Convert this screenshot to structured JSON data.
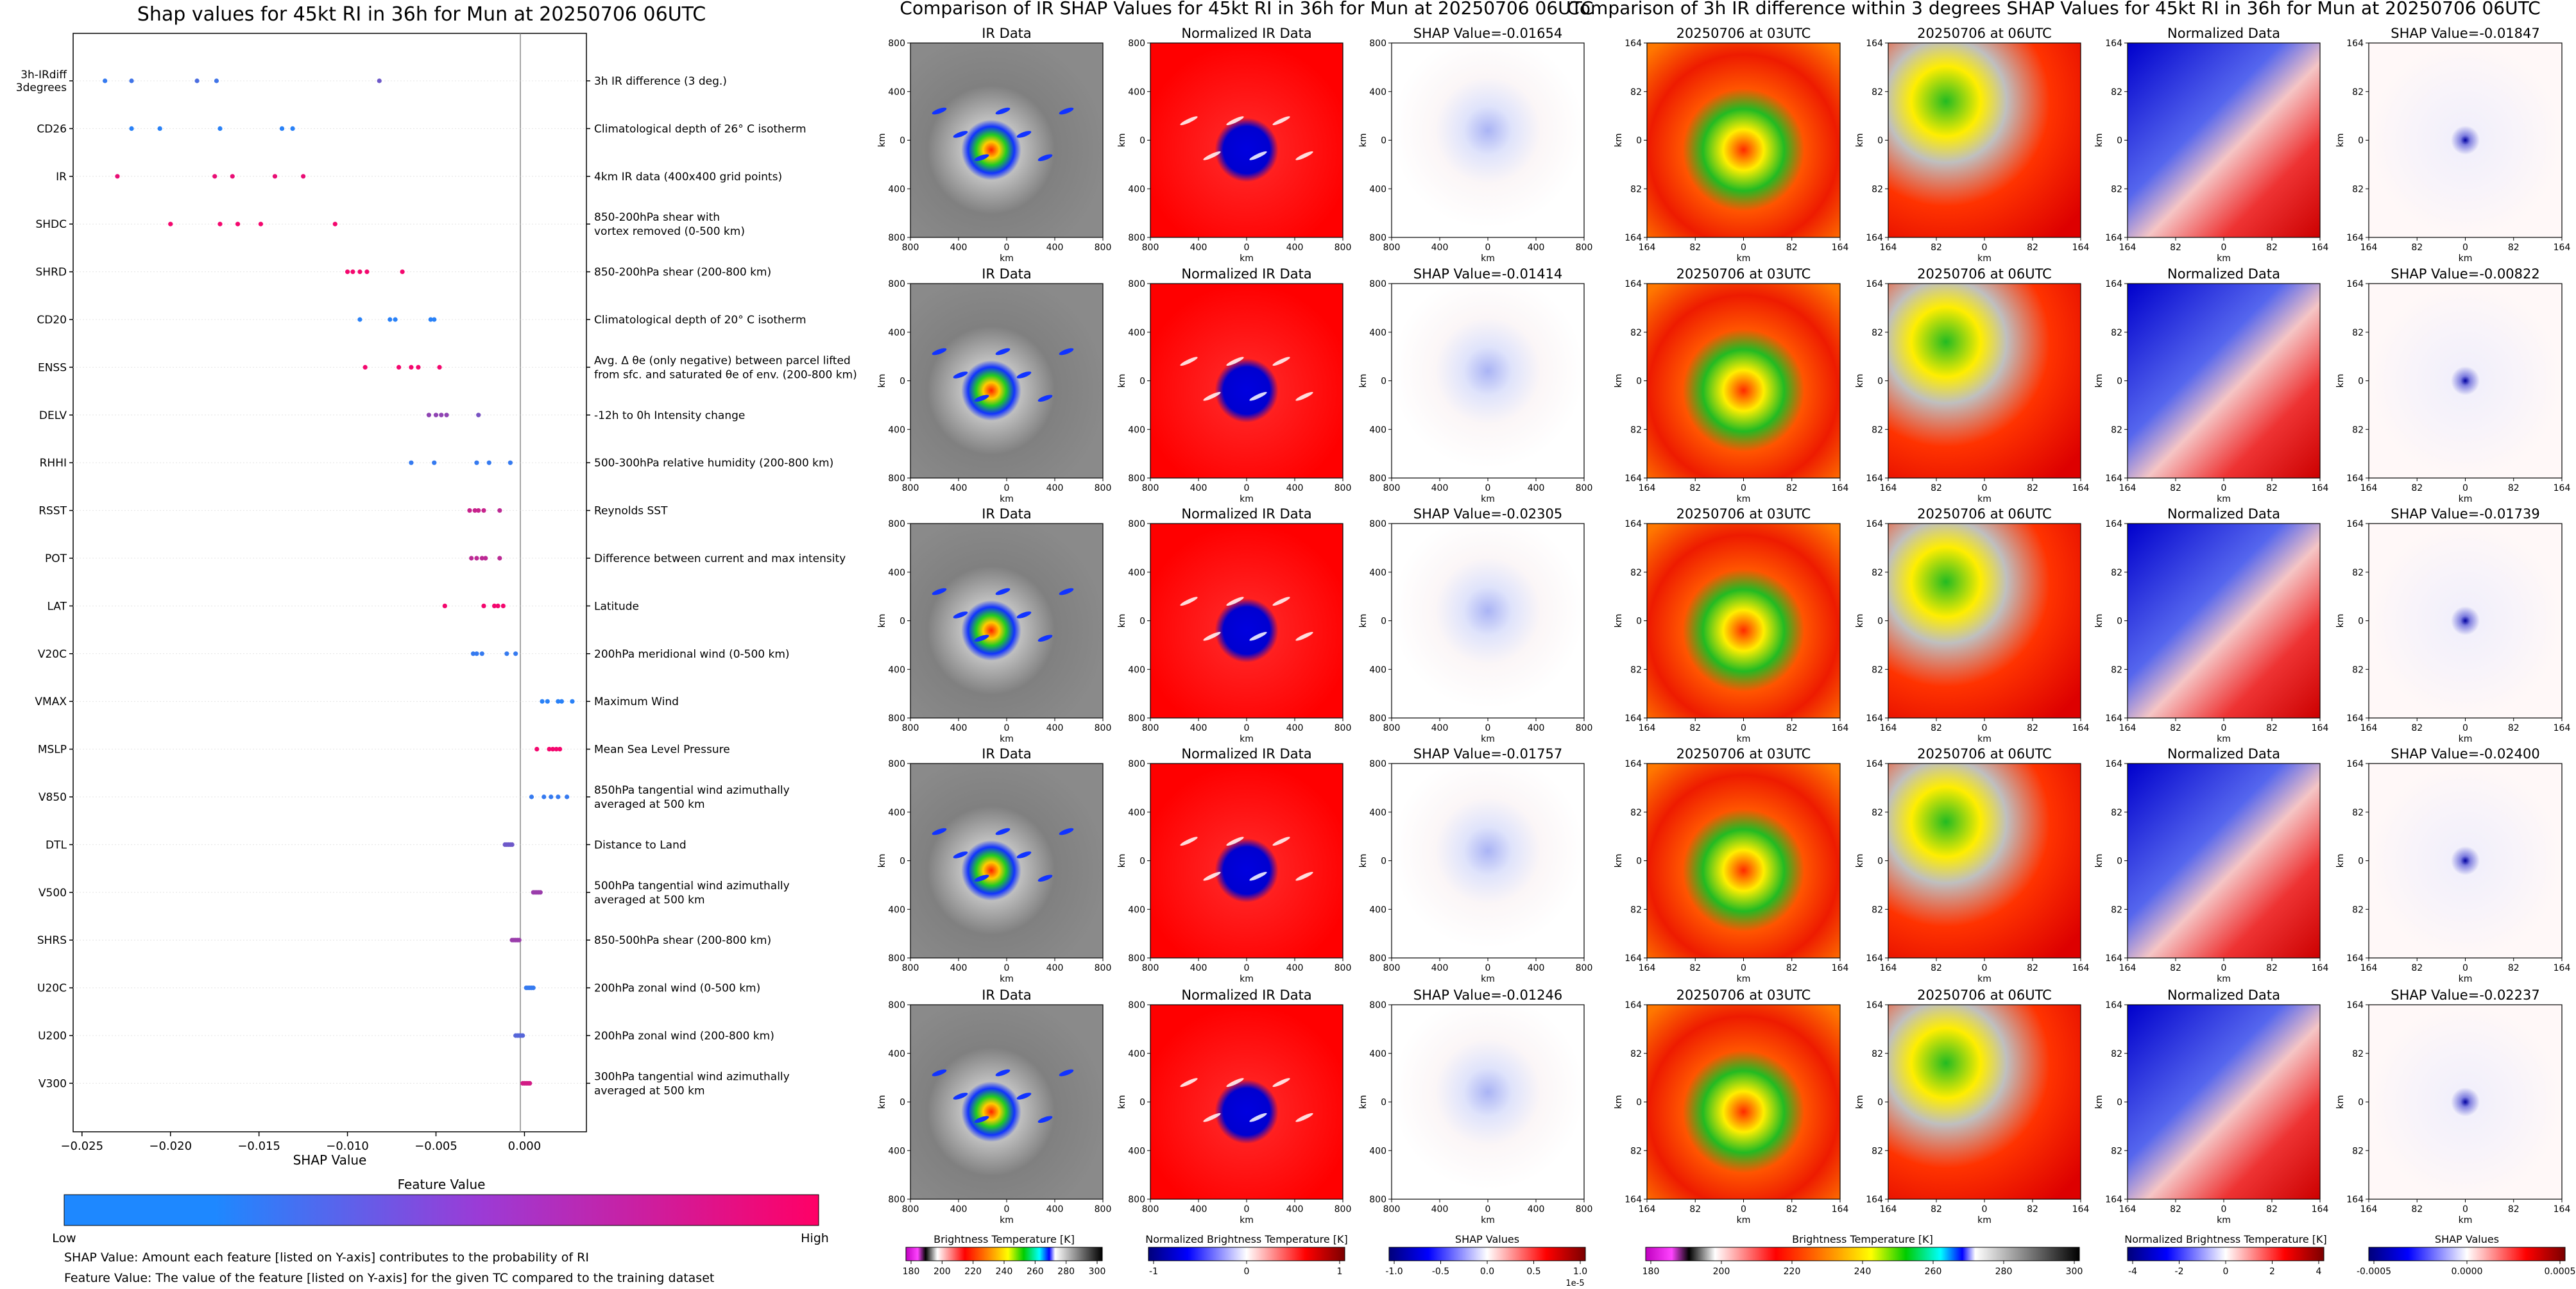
{
  "colors": {
    "feature_low": "#1e88ff",
    "feature_high": "#ff0066",
    "axis": "#000000",
    "grid": "#d9d9d9"
  },
  "shap_panel": {
    "title": "Shap values for 45kt RI in 36h for Mun at 20250706 06UTC",
    "xlabel": "SHAP Value",
    "colorbar_title": "Feature Value",
    "colorbar_low": "Low",
    "colorbar_high": "High",
    "footnote_1": "SHAP Value: Amount each feature [listed on Y-axis] contributes to the probability of RI",
    "footnote_2": "Feature Value: The value of the feature [listed on Y-axis] for the given TC compared to the training dataset"
  },
  "ir_block": {
    "title": "Comparison of IR SHAP Values for 45kt RI in 36h for Mun at 20250706 06UTC",
    "col_titles": [
      "IR Data",
      "Normalized IR Data",
      "SHAP Value=-0.01654"
    ],
    "shap_titles": [
      "SHAP Value=-0.01654",
      "SHAP Value=-0.01414",
      "SHAP Value=-0.02305",
      "SHAP Value=-0.01757",
      "SHAP Value=-0.01246"
    ],
    "ylabel": "km",
    "xlabel": "km",
    "ticks": [
      "800",
      "400",
      "0",
      "400",
      "800"
    ],
    "cb_titles": [
      "Brightness Temperature [K]",
      "Normalized Brightness Temperature [K]",
      "SHAP Values"
    ],
    "cb_ticks": [
      [
        "180",
        "200",
        "220",
        "240",
        "260",
        "280",
        "300"
      ],
      [
        "-1",
        "0",
        "1"
      ],
      [
        "-1.0",
        "-0.5",
        "0.0",
        "0.5",
        "1.0"
      ]
    ],
    "cb_exponent": "1e-5"
  },
  "diff_block": {
    "title": "Comparison of 3h IR difference within 3 degrees SHAP Values for 45kt RI in 36h for Mun at 20250706 06UTC",
    "col_titles": [
      "20250706 at 03UTC",
      "20250706 at 06UTC",
      "Normalized Data"
    ],
    "shap_titles": [
      "SHAP Value=-0.01847",
      "SHAP Value=-0.00822",
      "SHAP Value=-0.01739",
      "SHAP Value=-0.02400",
      "SHAP Value=-0.02237"
    ],
    "ylabel": "km",
    "xlabel": "km",
    "ticks": [
      "164",
      "82",
      "0",
      "82",
      "164"
    ],
    "cb_titles": [
      "Brightness Temperature [K]",
      "Normalized Brightness Temperature [K]",
      "SHAP Values"
    ],
    "cb_ticks": [
      [
        "180",
        "200",
        "220",
        "240",
        "260",
        "280",
        "300"
      ],
      [
        "-4",
        "-2",
        "0",
        "2",
        "4"
      ],
      [
        "-0.0005",
        "0.0000",
        "0.0005"
      ]
    ]
  },
  "chart_data": [
    {
      "type": "scatter",
      "title": "Shap values for 45kt RI in 36h for Mun at 20250706 06UTC",
      "xlabel": "SHAP Value",
      "xlim": [
        -0.0255,
        0.0035
      ],
      "xticks": [
        -0.025,
        -0.02,
        -0.015,
        -0.01,
        -0.005,
        0.0
      ],
      "xtick_labels": [
        "−0.025",
        "−0.020",
        "−0.015",
        "−0.010",
        "−0.005",
        "0.000"
      ],
      "color_scale": "feature value (low=blue, high=magenta)",
      "features": [
        {
          "name": "3h-IRdiff\n3degrees",
          "desc": "3h IR difference (3 deg.)",
          "shap": [
            -0.0237,
            -0.0222,
            -0.0185,
            -0.0174,
            -0.0082
          ],
          "fv": [
            0.1,
            0.15,
            0.2,
            0.15,
            0.35
          ]
        },
        {
          "name": "CD26",
          "desc": "Climatological depth of 26° C isotherm",
          "shap": [
            -0.0222,
            -0.0206,
            -0.0172,
            -0.0137,
            -0.0131
          ],
          "fv": [
            0.05,
            0.05,
            0.05,
            0.05,
            0.05
          ]
        },
        {
          "name": "IR",
          "desc": "4km IR data (400x400 grid points)",
          "shap": [
            -0.023,
            -0.0175,
            -0.0165,
            -0.0141,
            -0.0125
          ],
          "fv": [
            0.9,
            0.9,
            0.9,
            0.9,
            0.9
          ]
        },
        {
          "name": "SHDC",
          "desc": "850-200hPa shear with\nvortex removed (0-500 km)",
          "shap": [
            -0.02,
            -0.0172,
            -0.0162,
            -0.0149,
            -0.0107
          ],
          "fv": [
            0.95,
            0.95,
            0.95,
            0.95,
            0.95
          ]
        },
        {
          "name": "SHRD",
          "desc": "850-200hPa shear (200-800 km)",
          "shap": [
            -0.01,
            -0.0097,
            -0.0093,
            -0.0089,
            -0.0069
          ],
          "fv": [
            0.95,
            0.95,
            0.95,
            0.95,
            0.95
          ]
        },
        {
          "name": "CD20",
          "desc": "Climatological depth of 20° C isotherm",
          "shap": [
            -0.0093,
            -0.0076,
            -0.0073,
            -0.0053,
            -0.0051
          ],
          "fv": [
            0.05,
            0.05,
            0.05,
            0.05,
            0.05
          ]
        },
        {
          "name": "ENSS",
          "desc": "Avg. Δ θe (only negative) between parcel lifted\nfrom sfc. and saturated θe of env. (200-800 km)",
          "shap": [
            -0.009,
            -0.0071,
            -0.0064,
            -0.006,
            -0.0048
          ],
          "fv": [
            0.95,
            0.95,
            0.95,
            0.95,
            0.95
          ]
        },
        {
          "name": "DELV",
          "desc": "-12h to 0h Intensity change",
          "shap": [
            -0.0054,
            -0.005,
            -0.0047,
            -0.0044,
            -0.0026
          ],
          "fv": [
            0.5,
            0.5,
            0.5,
            0.5,
            0.4
          ]
        },
        {
          "name": "RHHI",
          "desc": "500-300hPa relative humidity (200-800 km)",
          "shap": [
            -0.0064,
            -0.0051,
            -0.0027,
            -0.002,
            -0.0008
          ],
          "fv": [
            0.1,
            0.1,
            0.1,
            0.1,
            0.1
          ]
        },
        {
          "name": "RSST",
          "desc": "Reynolds SST",
          "shap": [
            -0.0031,
            -0.0028,
            -0.0026,
            -0.0023,
            -0.0014
          ],
          "fv": [
            0.75,
            0.75,
            0.75,
            0.75,
            0.7
          ]
        },
        {
          "name": "POT",
          "desc": "Difference between current and max intensity",
          "shap": [
            -0.003,
            -0.0027,
            -0.0024,
            -0.0022,
            -0.0014
          ],
          "fv": [
            0.7,
            0.7,
            0.7,
            0.7,
            0.7
          ]
        },
        {
          "name": "LAT",
          "desc": "Latitude",
          "shap": [
            -0.0045,
            -0.0023,
            -0.0017,
            -0.0015,
            -0.0012
          ],
          "fv": [
            0.95,
            0.95,
            0.95,
            0.95,
            0.95
          ]
        },
        {
          "name": "V20C",
          "desc": "200hPa meridional wind (0-500 km)",
          "shap": [
            -0.0029,
            -0.0027,
            -0.0024,
            -0.001,
            -0.0005
          ],
          "fv": [
            0.1,
            0.1,
            0.1,
            0.1,
            0.1
          ]
        },
        {
          "name": "VMAX",
          "desc": "Maximum Wind",
          "shap": [
            0.001,
            0.0013,
            0.0019,
            0.0021,
            0.0027
          ],
          "fv": [
            0.05,
            0.05,
            0.05,
            0.05,
            0.05
          ]
        },
        {
          "name": "MSLP",
          "desc": "Mean Sea Level Pressure",
          "shap": [
            0.0007,
            0.0014,
            0.0016,
            0.0018,
            0.002
          ],
          "fv": [
            0.95,
            0.95,
            0.95,
            0.95,
            0.95
          ]
        },
        {
          "name": "V850",
          "desc": "850hPa tangential wind azimuthally\naveraged at 500 km",
          "shap": [
            0.0004,
            0.0011,
            0.0015,
            0.0019,
            0.0024
          ],
          "fv": [
            0.1,
            0.1,
            0.1,
            0.1,
            0.1
          ]
        },
        {
          "name": "DTL",
          "desc": "Distance to Land",
          "shap": [
            -0.0011,
            -0.001,
            -0.0009,
            -0.0008,
            -0.0007
          ],
          "fv": [
            0.35,
            0.35,
            0.35,
            0.35,
            0.35
          ]
        },
        {
          "name": "V500",
          "desc": "500hPa tangential wind azimuthally\naveraged at 500 km",
          "shap": [
            0.0005,
            0.0006,
            0.0007,
            0.0008,
            0.0009
          ],
          "fv": [
            0.55,
            0.55,
            0.55,
            0.55,
            0.55
          ]
        },
        {
          "name": "SHRS",
          "desc": "850-500hPa shear (200-800 km)",
          "shap": [
            -0.0007,
            -0.0006,
            -0.0005,
            -0.0004,
            -0.0003
          ],
          "fv": [
            0.55,
            0.55,
            0.55,
            0.55,
            0.55
          ]
        },
        {
          "name": "U20C",
          "desc": "200hPa zonal wind (0-500 km)",
          "shap": [
            0.0001,
            0.0002,
            0.0003,
            0.0004,
            0.0005
          ],
          "fv": [
            0.1,
            0.1,
            0.1,
            0.1,
            0.1
          ]
        },
        {
          "name": "U200",
          "desc": "200hPa zonal wind (200-800 km)",
          "shap": [
            -0.0005,
            -0.0004,
            -0.0003,
            -0.0002,
            -0.0001
          ],
          "fv": [
            0.25,
            0.25,
            0.25,
            0.25,
            0.25
          ]
        },
        {
          "name": "V300",
          "desc": "300hPa tangential wind azimuthally\naveraged at 500 km",
          "shap": [
            -0.0001,
            0.0,
            0.0001,
            0.0002,
            0.0003
          ],
          "fv": [
            0.8,
            0.8,
            0.8,
            0.8,
            0.8
          ]
        }
      ]
    },
    {
      "type": "heatmap",
      "title": "Comparison of IR SHAP Values for 45kt RI in 36h for Mun at 20250706 06UTC",
      "rows": 5,
      "columns": [
        "IR Data",
        "Normalized IR Data",
        "SHAP Value"
      ],
      "shap_values": [
        -0.01654,
        -0.01414,
        -0.02305,
        -0.01757,
        -0.01246
      ],
      "xlim": [
        -800,
        800
      ],
      "ylim": [
        -800,
        800
      ]
    },
    {
      "type": "heatmap",
      "title": "Comparison of 3h IR difference within 3 degrees SHAP Values for 45kt RI in 36h for Mun at 20250706 06UTC",
      "rows": 5,
      "columns": [
        "20250706 at 03UTC",
        "20250706 at 06UTC",
        "Normalized Data",
        "SHAP Value"
      ],
      "shap_values": [
        -0.01847,
        -0.00822,
        -0.01739,
        -0.024,
        -0.02237
      ],
      "xlim": [
        -164,
        164
      ],
      "ylim": [
        -164,
        164
      ]
    }
  ]
}
